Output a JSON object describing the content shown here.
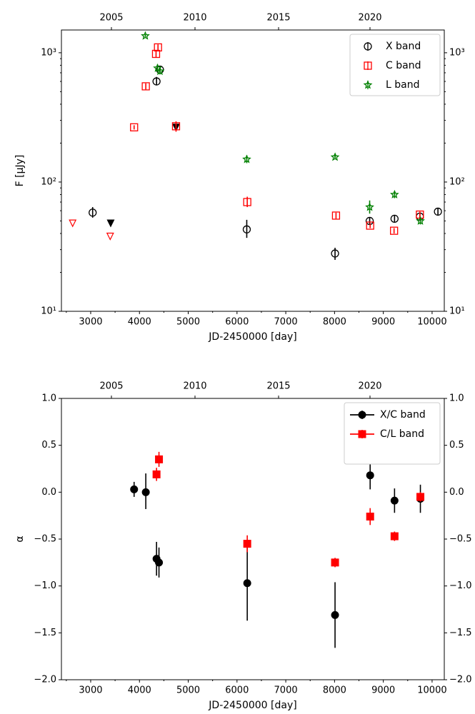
{
  "chart_data": [
    {
      "type": "scatter",
      "xlabel": "JD-2450000 [day]",
      "ylabel": "F [μJy]",
      "yscale": "log",
      "xlim": [
        2400,
        10250
      ],
      "ylim": [
        10,
        1500
      ],
      "xticks": [
        3000,
        4000,
        5000,
        6000,
        7000,
        8000,
        9000,
        10000
      ],
      "yticks": [
        {
          "value": 10,
          "label": "10¹"
        },
        {
          "value": 100,
          "label": "10²"
        },
        {
          "value": 1000,
          "label": "10³"
        }
      ],
      "top_axis_years": [
        "2005",
        "2010",
        "2015",
        "2020"
      ],
      "grid": false,
      "legend_position": "top-right",
      "series": [
        {
          "name": "X band",
          "color": "#000000",
          "marker": "open-circle",
          "points": [
            {
              "x": 3040,
              "y": 58,
              "lo": 53,
              "hi": 64
            },
            {
              "x": 4350,
              "y": 600,
              "lo": 560,
              "hi": 650
            },
            {
              "x": 4420,
              "y": 740,
              "lo": 710,
              "hi": 770
            },
            {
              "x": 6200,
              "y": 43,
              "lo": 37,
              "hi": 51
            },
            {
              "x": 8010,
              "y": 28,
              "lo": 25,
              "hi": 31
            },
            {
              "x": 8720,
              "y": 50,
              "lo": 47,
              "hi": 53
            },
            {
              "x": 9230,
              "y": 52,
              "lo": 49,
              "hi": 55
            },
            {
              "x": 9750,
              "y": 54,
              "lo": 51,
              "hi": 58
            },
            {
              "x": 10120,
              "y": 59,
              "lo": 55,
              "hi": 63
            }
          ],
          "upper_limits": [
            {
              "x": 3410,
              "y": 48
            },
            {
              "x": 4750,
              "y": 265
            }
          ]
        },
        {
          "name": "C band",
          "color": "#ff0000",
          "marker": "open-square",
          "points": [
            {
              "x": 3890,
              "y": 265,
              "lo": 255,
              "hi": 275
            },
            {
              "x": 4130,
              "y": 550,
              "lo": 520,
              "hi": 580
            },
            {
              "x": 4340,
              "y": 980,
              "lo": 920,
              "hi": 1050
            },
            {
              "x": 4380,
              "y": 1100,
              "lo": 1040,
              "hi": 1160
            },
            {
              "x": 4750,
              "y": 270,
              "lo": 245,
              "hi": 295
            },
            {
              "x": 6210,
              "y": 70,
              "lo": 64,
              "hi": 77
            },
            {
              "x": 8030,
              "y": 55,
              "lo": 52,
              "hi": 58
            },
            {
              "x": 8730,
              "y": 46,
              "lo": 44,
              "hi": 48
            },
            {
              "x": 9220,
              "y": 42,
              "lo": 40,
              "hi": 44
            },
            {
              "x": 9750,
              "y": 56,
              "lo": 53,
              "hi": 59
            }
          ],
          "upper_limits": [
            {
              "x": 2630,
              "y": 48
            },
            {
              "x": 3400,
              "y": 38
            }
          ]
        },
        {
          "name": "L band",
          "color": "#008000",
          "marker": "star",
          "points": [
            {
              "x": 4120,
              "y": 1350,
              "lo": 1310,
              "hi": 1390
            },
            {
              "x": 4370,
              "y": 760,
              "lo": 710,
              "hi": 810
            },
            {
              "x": 4420,
              "y": 720,
              "lo": 680,
              "hi": 760
            },
            {
              "x": 6200,
              "y": 150,
              "lo": 140,
              "hi": 161
            },
            {
              "x": 8010,
              "y": 156,
              "lo": 150,
              "hi": 162
            },
            {
              "x": 8720,
              "y": 64,
              "lo": 57,
              "hi": 72
            },
            {
              "x": 9230,
              "y": 80,
              "lo": 75,
              "hi": 85
            },
            {
              "x": 9760,
              "y": 50,
              "lo": 47,
              "hi": 53
            }
          ]
        }
      ]
    },
    {
      "type": "scatter",
      "xlabel": "JD-2450000 [day]",
      "ylabel": "α",
      "xlim": [
        2400,
        10250
      ],
      "ylim": [
        -2.0,
        1.0
      ],
      "xticks": [
        3000,
        4000,
        5000,
        6000,
        7000,
        8000,
        9000,
        10000
      ],
      "yticks": [
        {
          "value": 1.0,
          "label": "1.0"
        },
        {
          "value": 0.5,
          "label": "0.5"
        },
        {
          "value": 0.0,
          "label": "0.0"
        },
        {
          "value": -0.5,
          "label": "−0.5"
        },
        {
          "value": -1.0,
          "label": "−1.0"
        },
        {
          "value": -1.5,
          "label": "−1.5"
        },
        {
          "value": -2.0,
          "label": "−2.0"
        }
      ],
      "top_axis_years": [
        "2005",
        "2010",
        "2015",
        "2020"
      ],
      "grid": false,
      "legend_position": "top-right",
      "series": [
        {
          "name": "X/C band",
          "color": "#000000",
          "marker": "filled-circle",
          "points": [
            {
              "x": 3890,
              "y": 0.03,
              "lo": -0.05,
              "hi": 0.11
            },
            {
              "x": 4130,
              "y": 0.0,
              "lo": -0.18,
              "hi": 0.2
            },
            {
              "x": 4350,
              "y": -0.71,
              "lo": -0.89,
              "hi": -0.53
            },
            {
              "x": 4400,
              "y": -0.75,
              "lo": -0.91,
              "hi": -0.59
            },
            {
              "x": 6210,
              "y": -0.97,
              "lo": -1.37,
              "hi": -0.57
            },
            {
              "x": 8010,
              "y": -1.31,
              "lo": -1.66,
              "hi": -0.96
            },
            {
              "x": 8730,
              "y": 0.18,
              "lo": 0.03,
              "hi": 0.33
            },
            {
              "x": 9230,
              "y": -0.09,
              "lo": -0.22,
              "hi": 0.04
            },
            {
              "x": 9760,
              "y": -0.07,
              "lo": -0.22,
              "hi": 0.08
            }
          ]
        },
        {
          "name": "C/L band",
          "color": "#ff0000",
          "marker": "filled-square",
          "points": [
            {
              "x": 4350,
              "y": 0.19,
              "lo": 0.12,
              "hi": 0.26
            },
            {
              "x": 4400,
              "y": 0.35,
              "lo": 0.27,
              "hi": 0.43
            },
            {
              "x": 6210,
              "y": -0.55,
              "lo": -0.64,
              "hi": -0.46
            },
            {
              "x": 8010,
              "y": -0.75,
              "lo": -0.8,
              "hi": -0.7
            },
            {
              "x": 8730,
              "y": -0.26,
              "lo": -0.35,
              "hi": -0.17
            },
            {
              "x": 9230,
              "y": -0.47,
              "lo": -0.52,
              "hi": -0.42
            },
            {
              "x": 9760,
              "y": -0.05,
              "lo": -0.1,
              "hi": 0.0
            }
          ]
        }
      ]
    }
  ]
}
